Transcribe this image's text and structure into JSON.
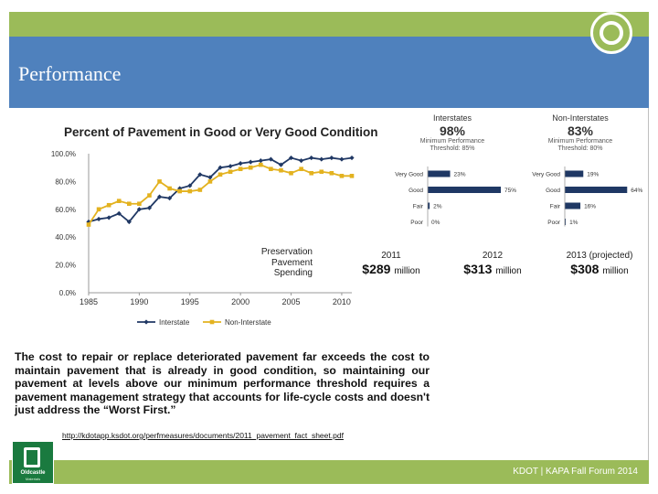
{
  "slide": {
    "title": "Performance",
    "footer": "KDOT | KAPA Fall Forum 2014",
    "url": "http://kdotapp.ksdot.org/perfmeasures/documents/2011_pavement_fact_sheet.pdf",
    "paragraph": "The cost to repair or replace deteriorated pavement far exceeds the cost to maintain pavement that is already in good condition, so maintaining our pavement at levels above our minimum performance threshold requires a pavement management strategy that accounts for life-cycle costs and doesn't just address the “Worst First.”",
    "logo": {
      "name": "Oldcastle",
      "sub": "Materials"
    },
    "colors": {
      "accent_green": "#9bbb59",
      "title_blue": "#4f81bd",
      "bar_navy": "#1f3864",
      "interstate": "#203864",
      "non_interstate": "#e3b21f"
    }
  },
  "chart_data": [
    {
      "type": "line",
      "title": "Percent of Pavement in Good or Very Good Condition",
      "xlabel": "",
      "ylabel": "",
      "xlim": [
        1985,
        2011
      ],
      "ylim": [
        0,
        100
      ],
      "x_ticks": [
        1985,
        1990,
        1995,
        2000,
        2005,
        2010
      ],
      "y_ticks": [
        "0.0%",
        "20.0%",
        "40.0%",
        "60.0%",
        "80.0%",
        "100.0%"
      ],
      "legend": "bottom",
      "series": [
        {
          "name": "Interstate",
          "color": "#203864",
          "x": [
            1985,
            1986,
            1987,
            1988,
            1989,
            1990,
            1991,
            1992,
            1993,
            1994,
            1995,
            1996,
            1997,
            1998,
            1999,
            2000,
            2001,
            2002,
            2003,
            2004,
            2005,
            2006,
            2007,
            2008,
            2009,
            2010,
            2011
          ],
          "values": [
            51,
            53,
            54,
            57,
            51,
            60,
            61,
            69,
            68,
            75,
            77,
            85,
            83,
            90,
            91,
            93,
            94,
            95,
            96,
            92,
            97,
            95,
            97,
            96,
            97,
            96,
            97
          ]
        },
        {
          "name": "Non-Interstate",
          "color": "#e3b21f",
          "x": [
            1985,
            1986,
            1987,
            1988,
            1989,
            1990,
            1991,
            1992,
            1993,
            1994,
            1995,
            1996,
            1997,
            1998,
            1999,
            2000,
            2001,
            2002,
            2003,
            2004,
            2005,
            2006,
            2007,
            2008,
            2009,
            2010,
            2011
          ],
          "values": [
            49,
            60,
            63,
            66,
            64,
            64,
            70,
            80,
            75,
            73,
            73,
            74,
            80,
            85,
            87,
            89,
            90,
            92,
            89,
            88,
            86,
            89,
            86,
            87,
            86,
            84,
            84
          ]
        }
      ]
    },
    {
      "type": "bar",
      "orientation": "horizontal",
      "title": "Interstates",
      "headline": "98%",
      "subtitle_line1": "Minimum Performance",
      "subtitle_line2": "Threshold: 85%",
      "categories": [
        "Very Good",
        "Good",
        "Fair",
        "Poor"
      ],
      "values": [
        23,
        75,
        2,
        0
      ],
      "value_labels": [
        "23%",
        "75%",
        "2%",
        "0%"
      ]
    },
    {
      "type": "bar",
      "orientation": "horizontal",
      "title": "Non-Interstates",
      "headline": "83%",
      "subtitle_line1": "Minimum Performance",
      "subtitle_line2": "Threshold: 80%",
      "categories": [
        "Very Good",
        "Good",
        "Fair",
        "Poor"
      ],
      "values": [
        19,
        64,
        16,
        1
      ],
      "value_labels": [
        "19%",
        "64%",
        "16%",
        "1%"
      ]
    }
  ],
  "spending": {
    "label_line1": "Preservation",
    "label_line2": "Pavement",
    "label_line3": "Spending",
    "items": [
      {
        "year": "2011",
        "amount": "$289",
        "unit": "million"
      },
      {
        "year": "2012",
        "amount": "$313",
        "unit": "million"
      },
      {
        "year": "2013 (projected)",
        "amount": "$308",
        "unit": "million"
      }
    ]
  }
}
